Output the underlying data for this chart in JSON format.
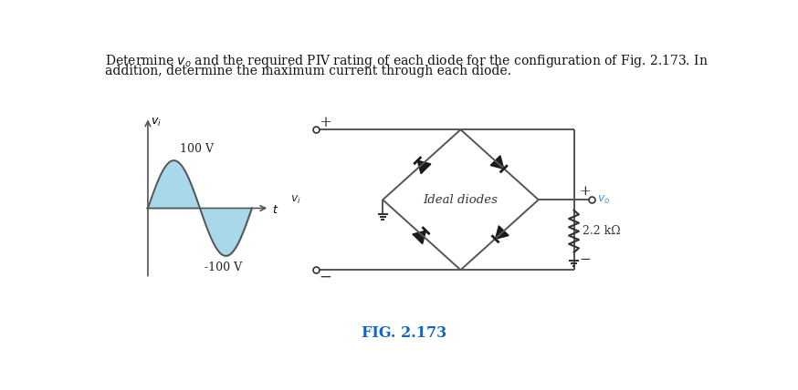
{
  "title_line1": "Determine $v_o$ and the required PIV rating of each diode for the configuration of Fig. 2.173. In",
  "title_line2": "addition, determine the maximum current through each diode.",
  "fig_label": "FIG. 2.173",
  "fig_label_color": "#1565C0",
  "sine_label_pos": "100 V",
  "sine_label_neg": "-100 V",
  "vi_label": "$v_i$",
  "vo_label": "$v_o$",
  "vi_axis_label": "$v_i$",
  "t_label": "$t$",
  "resistor_label": "2.2 kΩ",
  "ideal_diodes_label": "Ideal diodes",
  "background_color": "#ffffff",
  "line_color": "#000000",
  "sine_fill_color": "#a8d8ea",
  "blue_label_color": "#4a90d9",
  "plus_label": "+",
  "minus_label": "−",
  "diode_color": "#1a1a1a"
}
